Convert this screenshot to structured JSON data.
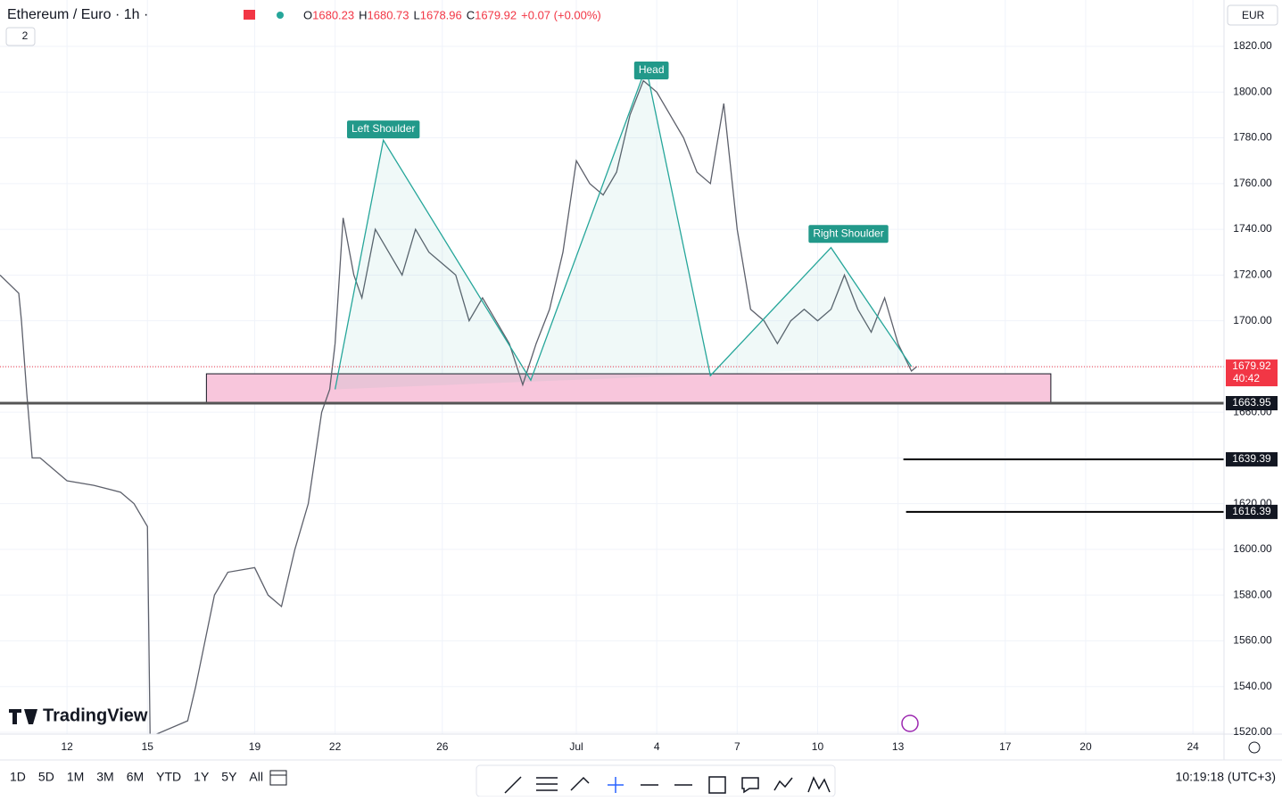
{
  "header": {
    "symbol": "Ethereum / Euro · 1h ·",
    "indicators": "2",
    "ohlc": [
      {
        "label": "O",
        "value": 1680.23
      },
      {
        "label": "H",
        "value": 1680.73
      },
      {
        "label": "L",
        "value": 1678.96
      },
      {
        "label": "C",
        "value": 1679.92
      }
    ],
    "change": "+0.07 (+0.00%)",
    "currency": "EUR"
  },
  "chart_data": {
    "type": "line",
    "xlim": [
      9.5,
      55.16
    ],
    "ylim": [
      1519.2,
      1840.3
    ],
    "xticks": [
      12,
      15,
      19,
      22,
      26,
      {
        "value": 31,
        "label": "Jul"
      },
      {
        "value": 34,
        "label": "4"
      },
      {
        "value": 37,
        "label": "7"
      },
      {
        "value": 40,
        "label": "10"
      },
      {
        "value": 43,
        "label": "13"
      },
      {
        "value": 47,
        "label": "17"
      },
      {
        "value": 50,
        "label": "20"
      },
      {
        "value": 54,
        "label": "24"
      }
    ],
    "yticks": [
      {
        "value": 1520,
        "label": "1520.00"
      },
      {
        "value": 1540,
        "label": "1540.00"
      },
      {
        "value": 1560,
        "label": "1560.00"
      },
      {
        "value": 1580,
        "label": "1580.00"
      },
      {
        "value": 1600,
        "label": "1600.00"
      },
      {
        "value": 1620,
        "label": "1620.00"
      },
      {
        "value": 1640,
        "label": "1640.00"
      },
      {
        "value": 1660,
        "label": "1660.00"
      },
      {
        "value": 1680,
        "label": "1680.00"
      },
      {
        "value": 1700,
        "label": "1700.00"
      },
      {
        "value": 1720,
        "label": "1720.00"
      },
      {
        "value": 1740,
        "label": "1740.00"
      },
      {
        "value": 1760,
        "label": "1760.00"
      },
      {
        "value": 1780,
        "label": "1780.00"
      },
      {
        "value": 1800,
        "label": "1800.00"
      },
      {
        "value": 1820,
        "label": "1820.00"
      }
    ],
    "grid": true,
    "series": [
      {
        "color": "#5d606b",
        "x": [
          9.5,
          10.2,
          10.3,
          10.5,
          10.7,
          11,
          12,
          13,
          14,
          14.5,
          15,
          15.1,
          16.5,
          16.8,
          17.5,
          18,
          19,
          19.5,
          20,
          20.5,
          21,
          21.5,
          21.8,
          22,
          22.3,
          22.7,
          23,
          23.5,
          24,
          24.5,
          25,
          25.5,
          26,
          26.5,
          27,
          27.5,
          28,
          28.5,
          29,
          29.5,
          30,
          30.5,
          31,
          31.5,
          32,
          32.5,
          33,
          33.5,
          34,
          34.5,
          35,
          35.5,
          36,
          36.5,
          37,
          37.5,
          38,
          38.5,
          39,
          39.5,
          40,
          40.5,
          41,
          41.5,
          42,
          42.5,
          43,
          43.5,
          43.7
        ],
        "values": [
          1720,
          1712,
          1700,
          1668,
          1640,
          1640,
          1630,
          1628,
          1625,
          1620,
          1610,
          1518,
          1525,
          1540,
          1580,
          1590,
          1592,
          1580,
          1575,
          1600,
          1620,
          1660,
          1670,
          1690,
          1745,
          1720,
          1710,
          1740,
          1730,
          1720,
          1740,
          1730,
          1725,
          1720,
          1700,
          1710,
          1700,
          1690,
          1672,
          1690,
          1705,
          1730,
          1770,
          1760,
          1755,
          1765,
          1790,
          1805,
          1800,
          1790,
          1780,
          1765,
          1760,
          1795,
          1740,
          1705,
          1700,
          1690,
          1700,
          1705,
          1700,
          1705,
          1720,
          1705,
          1695,
          1710,
          1690,
          1678,
          1680
        ]
      },
      {
        "color": "#26a69a",
        "x": [
          22,
          23.8,
          29.3,
          33.6,
          36,
          40.5,
          43.5
        ],
        "values": [
          1670,
          1779,
          1674,
          1811,
          1676,
          1732,
          1680
        ]
      }
    ],
    "annotations": [
      {
        "text": "Left Shoulder",
        "x": 23.8,
        "y": 1783.7
      },
      {
        "text": "Head",
        "x": 33.8,
        "y": 1809.5
      },
      {
        "text": "Right Shoulder",
        "x": 41.15,
        "y": 1738
      }
    ],
    "zone": {
      "x": [
        17.2,
        48.7
      ],
      "y": [
        1663.95,
        1676.8
      ],
      "color": "#f8c6dc"
    },
    "levels": [
      {
        "value": 1663.95,
        "x_start": 9.5
      },
      {
        "value": 1639.39,
        "x_start": 43.2
      },
      {
        "value": 1616.39,
        "x_start": 43.3
      }
    ],
    "last_price": {
      "value": 1679.92,
      "countdown": "40:42"
    }
  },
  "toolbar": {
    "ranges": [
      "1D",
      "5D",
      "1M",
      "3M",
      "6M",
      "YTD",
      "1Y",
      "5Y",
      "All"
    ],
    "clock": "10:19:18 (UTC+3)",
    "brand": "TradingView"
  }
}
